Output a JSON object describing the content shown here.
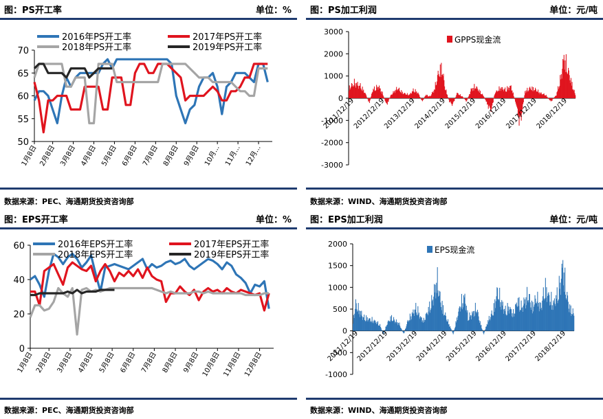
{
  "panels": {
    "ps_rate": {
      "title": "图：PS开工率",
      "unit": "单位：%",
      "source": "数据来源：PEC、海通期货投资咨询部"
    },
    "ps_margin": {
      "title": "图：PS加工利润",
      "unit": "单位：元/吨",
      "source": "数据来源：WIND、海通期货投资咨询部"
    },
    "eps_rate": {
      "title": "图：EPS开工率",
      "unit": "单位：%",
      "source": "数据来源：PEC、海通期货投资咨询部"
    },
    "eps_margin": {
      "title": "图：EPS加工利润",
      "unit": "单位：元/吨",
      "source": "数据来源：WIND、海通期货投资咨询部"
    }
  },
  "colors": {
    "blue": "#2e75b6",
    "red": "#e0141e",
    "gray": "#a5a5a5",
    "black": "#262626",
    "eps_bar": "#2e75b6",
    "gpps_bar": "#e0141e",
    "rule": "#1f3b6f"
  },
  "chart_data": [
    {
      "id": "ps_rate",
      "type": "line",
      "ylim": [
        50,
        70
      ],
      "yticks": [
        50,
        55,
        60,
        65,
        70
      ],
      "x_range": [
        0,
        52
      ],
      "xticks": [
        {
          "x": 0,
          "label": "1月8日"
        },
        {
          "x": 4,
          "label": "2月8日"
        },
        {
          "x": 8.5,
          "label": "3月8日"
        },
        {
          "x": 13,
          "label": "4月8日"
        },
        {
          "x": 17.5,
          "label": "5月8日"
        },
        {
          "x": 22,
          "label": "6月8日"
        },
        {
          "x": 26.5,
          "label": "7月8日"
        },
        {
          "x": 31,
          "label": "8月8日"
        },
        {
          "x": 35.5,
          "label": "9月8日"
        },
        {
          "x": 40,
          "label": "10月..."
        },
        {
          "x": 44.5,
          "label": "11月..."
        },
        {
          "x": 49,
          "label": "12月..."
        }
      ],
      "series": [
        {
          "name": "2016年PS开工率",
          "color": "#2e75b6",
          "values": [
            59,
            61,
            61,
            60,
            57,
            54,
            60,
            64,
            62,
            64,
            65,
            65,
            65,
            65,
            65,
            67,
            68,
            66,
            68,
            68,
            68,
            68,
            68,
            68,
            68,
            68,
            68,
            68,
            68,
            68,
            67,
            60,
            57,
            54,
            57,
            58,
            62,
            64,
            64,
            65,
            62,
            56,
            62,
            63,
            65,
            65,
            65,
            64,
            63,
            67,
            67,
            63
          ]
        },
        {
          "name": "2017年PS开工率",
          "color": "#e0141e",
          "values": [
            63,
            59,
            52,
            59,
            59,
            60,
            60,
            60,
            57,
            57,
            57,
            62,
            62,
            62,
            62,
            57,
            57,
            64,
            64,
            64,
            58,
            58,
            65,
            67,
            67,
            65,
            65,
            67,
            67,
            67,
            66,
            65,
            64,
            59,
            60,
            60,
            60,
            60,
            61,
            62,
            61,
            59,
            59,
            61,
            61,
            62,
            64,
            64,
            67,
            67,
            67,
            67
          ]
        },
        {
          "name": "2018年PS开工率",
          "color": "#a5a5a5",
          "values": [
            64,
            67,
            67,
            67,
            67,
            67,
            67,
            62,
            62,
            64,
            64,
            64,
            54,
            54,
            67,
            67,
            67,
            67,
            63,
            63,
            63,
            63,
            63,
            63,
            63,
            63,
            63,
            63,
            67,
            67,
            67,
            67,
            67,
            67,
            66,
            65,
            64,
            64,
            64,
            63,
            63,
            63,
            63,
            63,
            62,
            61,
            61,
            60,
            60,
            66,
            66,
            66
          ]
        },
        {
          "name": "2019年PS开工率",
          "color": "#262626",
          "values": [
            66,
            67,
            67,
            65,
            65,
            65,
            65,
            64,
            66,
            66,
            66,
            66,
            64,
            65,
            66,
            66,
            66,
            66
          ]
        }
      ]
    },
    {
      "id": "ps_margin",
      "type": "bar",
      "series_name": "GPPS现金流",
      "ylim": [
        -3000,
        3000
      ],
      "yticks": [
        -3000,
        -2000,
        -1000,
        0,
        1000,
        2000,
        3000
      ],
      "xlabels": [
        "2011/12/19",
        "2012/12/19",
        "2013/12/19",
        "2014/12/19",
        "2015/12/19",
        "2016/12/19",
        "2017/12/19",
        "2018/12/19"
      ],
      "n_points": 420,
      "profile": [
        [
          0,
          600
        ],
        [
          10,
          900
        ],
        [
          22,
          700
        ],
        [
          30,
          300
        ],
        [
          38,
          -300
        ],
        [
          44,
          500
        ],
        [
          55,
          700
        ],
        [
          62,
          300
        ],
        [
          70,
          -400
        ],
        [
          78,
          200
        ],
        [
          90,
          600
        ],
        [
          100,
          300
        ],
        [
          112,
          200
        ],
        [
          120,
          500
        ],
        [
          128,
          300
        ],
        [
          136,
          -200
        ],
        [
          142,
          200
        ],
        [
          150,
          100
        ],
        [
          158,
          500
        ],
        [
          166,
          1500
        ],
        [
          172,
          1800
        ],
        [
          178,
          600
        ],
        [
          186,
          -200
        ],
        [
          192,
          -400
        ],
        [
          200,
          300
        ],
        [
          210,
          100
        ],
        [
          218,
          -200
        ],
        [
          226,
          500
        ],
        [
          234,
          700
        ],
        [
          242,
          400
        ],
        [
          250,
          100
        ],
        [
          258,
          -500
        ],
        [
          264,
          -700
        ],
        [
          270,
          300
        ],
        [
          280,
          600
        ],
        [
          290,
          500
        ],
        [
          300,
          700
        ],
        [
          310,
          -400
        ],
        [
          316,
          -1500
        ],
        [
          320,
          -900
        ],
        [
          326,
          400
        ],
        [
          336,
          600
        ],
        [
          346,
          500
        ],
        [
          354,
          300
        ],
        [
          364,
          200
        ],
        [
          374,
          -200
        ],
        [
          384,
          200
        ],
        [
          392,
          1200
        ],
        [
          398,
          2400
        ],
        [
          404,
          1800
        ],
        [
          412,
          900
        ],
        [
          419,
          200
        ]
      ]
    },
    {
      "id": "eps_rate",
      "type": "line",
      "ylim": [
        0,
        60
      ],
      "yticks": [
        0,
        20,
        40,
        60
      ],
      "x_range": [
        0,
        52
      ],
      "xticks": [
        {
          "x": 0,
          "label": "1月8日"
        },
        {
          "x": 4,
          "label": "2月8日"
        },
        {
          "x": 8.5,
          "label": "3月8日"
        },
        {
          "x": 13,
          "label": "4月8日"
        },
        {
          "x": 17.5,
          "label": "5月8日"
        },
        {
          "x": 22,
          "label": "6月8日"
        },
        {
          "x": 26.5,
          "label": "7月8日"
        },
        {
          "x": 31,
          "label": "8月8日"
        },
        {
          "x": 35.5,
          "label": "9月8日"
        },
        {
          "x": 40,
          "label": "10月8日"
        },
        {
          "x": 44.5,
          "label": "11月8日"
        },
        {
          "x": 49,
          "label": "12月8日"
        }
      ],
      "series": [
        {
          "name": "2016年EPS开工率",
          "color": "#2e75b6",
          "values": [
            40,
            42,
            37,
            30,
            45,
            55,
            53,
            49,
            53,
            55,
            52,
            47,
            50,
            54,
            43,
            33,
            47,
            48,
            49,
            48,
            47,
            46,
            48,
            50,
            52,
            46,
            49,
            47,
            48,
            50,
            51,
            49,
            50,
            52,
            48,
            46,
            48,
            50,
            52,
            51,
            49,
            46,
            50,
            48,
            43,
            41,
            38,
            32,
            37,
            36,
            39,
            23
          ]
        },
        {
          "name": "2017年EPS开工率",
          "color": "#e0141e",
          "values": [
            33,
            33,
            25,
            45,
            47,
            49,
            43,
            37,
            47,
            50,
            48,
            46,
            45,
            48,
            39,
            45,
            49,
            45,
            39,
            44,
            42,
            45,
            42,
            46,
            41,
            47,
            42,
            40,
            39,
            27,
            32,
            32,
            36,
            33,
            31,
            34,
            28,
            33,
            35,
            33,
            34,
            32,
            35,
            33,
            32,
            34,
            33,
            32,
            31,
            32,
            22,
            32
          ]
        },
        {
          "name": "2018年EPS开工率",
          "color": "#a5a5a5",
          "values": [
            18,
            25,
            25,
            22,
            23,
            27,
            35,
            32,
            30,
            35,
            8,
            34,
            35,
            33,
            34,
            33,
            34,
            35,
            35,
            35,
            35,
            35,
            35,
            35,
            35,
            35,
            35,
            34,
            33,
            32,
            33,
            32,
            32,
            32,
            32,
            33,
            33,
            32,
            33,
            32,
            32,
            32,
            32,
            32,
            32,
            32,
            31,
            31,
            31,
            31,
            32,
            32
          ]
        },
        {
          "name": "2019年EPS开工率",
          "color": "#262626",
          "values": [
            31,
            31,
            32,
            32,
            32,
            32,
            32,
            32,
            33,
            32,
            34,
            32,
            33,
            33,
            33,
            34,
            34,
            34,
            34
          ]
        }
      ]
    },
    {
      "id": "eps_margin",
      "type": "bar",
      "series_name": "EPS现金流",
      "ylim": [
        -1000,
        2000
      ],
      "yticks": [
        -1000,
        -500,
        0,
        500,
        1000,
        1500,
        2000
      ],
      "xlabels": [
        "2011/12/19",
        "2012/12/19",
        "2013/12/19",
        "2014/12/19",
        "2015/12/19",
        "2016/12/19",
        "2017/12/19",
        "2018/12/19"
      ],
      "n_points": 420,
      "profile": [
        [
          0,
          300
        ],
        [
          5,
          800
        ],
        [
          12,
          600
        ],
        [
          20,
          400
        ],
        [
          30,
          350
        ],
        [
          40,
          300
        ],
        [
          50,
          200
        ],
        [
          58,
          -100
        ],
        [
          64,
          200
        ],
        [
          72,
          400
        ],
        [
          80,
          300
        ],
        [
          88,
          200
        ],
        [
          96,
          -100
        ],
        [
          104,
          300
        ],
        [
          112,
          500
        ],
        [
          120,
          700
        ],
        [
          128,
          400
        ],
        [
          134,
          300
        ],
        [
          142,
          600
        ],
        [
          150,
          900
        ],
        [
          156,
          1300
        ],
        [
          160,
          1500
        ],
        [
          166,
          900
        ],
        [
          174,
          500
        ],
        [
          182,
          200
        ],
        [
          190,
          -100
        ],
        [
          196,
          300
        ],
        [
          204,
          800
        ],
        [
          212,
          1000
        ],
        [
          218,
          400
        ],
        [
          226,
          500
        ],
        [
          234,
          700
        ],
        [
          240,
          300
        ],
        [
          248,
          -100
        ],
        [
          256,
          300
        ],
        [
          266,
          600
        ],
        [
          274,
          1200
        ],
        [
          280,
          900
        ],
        [
          288,
          600
        ],
        [
          296,
          700
        ],
        [
          304,
          500
        ],
        [
          312,
          900
        ],
        [
          320,
          700
        ],
        [
          326,
          900
        ],
        [
          332,
          1100
        ],
        [
          340,
          700
        ],
        [
          348,
          1000
        ],
        [
          356,
          700
        ],
        [
          364,
          1300
        ],
        [
          372,
          1000
        ],
        [
          380,
          800
        ],
        [
          388,
          1100
        ],
        [
          394,
          1500
        ],
        [
          398,
          2000
        ],
        [
          404,
          1200
        ],
        [
          410,
          700
        ],
        [
          419,
          500
        ]
      ]
    }
  ]
}
